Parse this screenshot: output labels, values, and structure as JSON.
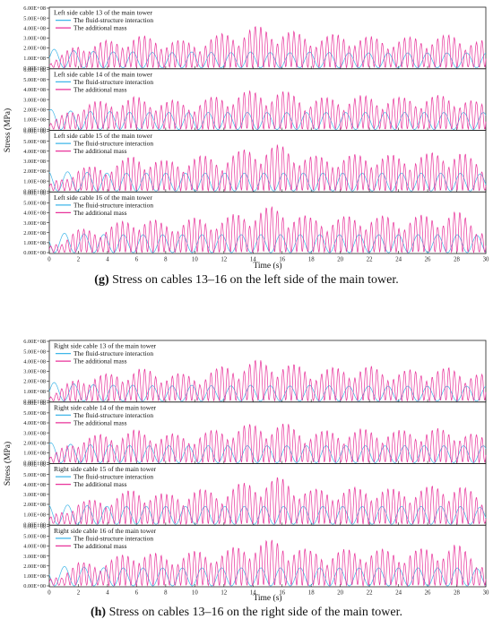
{
  "figure": {
    "caption_g_label": "(g)",
    "caption_g_text": "Stress on cables 13–16 on the left side of the main tower.",
    "caption_h_label": "(h)",
    "caption_h_text": "Stress on cables 13–16 on the right side of the main tower."
  },
  "colors": {
    "fsi": "#3fb6e8",
    "am": "#e8329a"
  },
  "chart_data": [
    {
      "type": "line",
      "group": "g",
      "ylabel": "Stress (MPa)",
      "xlabel": "Time (s)",
      "xlim": [
        0,
        30
      ],
      "x_ticks": [
        0,
        2,
        4,
        6,
        8,
        10,
        12,
        14,
        16,
        18,
        20,
        22,
        24,
        26,
        28,
        30
      ],
      "ylim": [
        0,
        600000000
      ],
      "y_tick_labels": [
        "0.00E+00",
        "1.00E+08",
        "2.00E+08",
        "3.00E+08",
        "4.00E+08",
        "5.00E+08",
        "6.00E+08"
      ],
      "legend_placement": "top-left",
      "series_names": [
        "The fluid-structure interaction",
        "The additional mass"
      ],
      "panels": [
        {
          "title": "Left side cable 13 of the main tower",
          "series": [
            {
              "name": "The fluid-structure interaction",
              "x": [
                0,
                2,
                4,
                6,
                8,
                10,
                12,
                14,
                16,
                18,
                20,
                22,
                24,
                26,
                28,
                30
              ],
              "values": [
                190000000.0,
                170000000.0,
                160000000.0,
                160000000.0,
                150000000.0,
                160000000.0,
                150000000.0,
                160000000.0,
                150000000.0,
                160000000.0,
                150000000.0,
                150000000.0,
                150000000.0,
                150000000.0,
                150000000.0,
                150000000.0
              ]
            },
            {
              "name": "The additional mass",
              "x": [
                0,
                2,
                4,
                6,
                8,
                10,
                12,
                14,
                16,
                18,
                20,
                22,
                24,
                26,
                28,
                30
              ],
              "values": [
                50000000.0,
                240000000.0,
                270000000.0,
                330000000.0,
                290000000.0,
                260000000.0,
                350000000.0,
                420000000.0,
                390000000.0,
                320000000.0,
                340000000.0,
                310000000.0,
                300000000.0,
                320000000.0,
                330000000.0,
                260000000.0
              ]
            }
          ]
        },
        {
          "title": "Left side cable 14 of the main tower",
          "series": [
            {
              "name": "The fluid-structure interaction",
              "x": [
                0,
                2,
                4,
                6,
                8,
                10,
                12,
                14,
                16,
                18,
                20,
                22,
                24,
                26,
                28,
                30
              ],
              "values": [
                200000000.0,
                180000000.0,
                180000000.0,
                170000000.0,
                170000000.0,
                170000000.0,
                170000000.0,
                170000000.0,
                170000000.0,
                170000000.0,
                170000000.0,
                170000000.0,
                170000000.0,
                170000000.0,
                170000000.0,
                170000000.0
              ]
            },
            {
              "name": "The additional mass",
              "x": [
                0,
                2,
                4,
                6,
                8,
                10,
                12,
                14,
                16,
                18,
                20,
                22,
                24,
                26,
                28,
                30
              ],
              "values": [
                50000000.0,
                260000000.0,
                290000000.0,
                330000000.0,
                290000000.0,
                280000000.0,
                350000000.0,
                390000000.0,
                390000000.0,
                310000000.0,
                330000000.0,
                340000000.0,
                320000000.0,
                340000000.0,
                340000000.0,
                250000000.0
              ]
            }
          ]
        },
        {
          "title": "Left side cable 15 of the main tower",
          "series": [
            {
              "name": "The fluid-structure interaction",
              "x": [
                0,
                2,
                4,
                6,
                8,
                10,
                12,
                14,
                16,
                18,
                20,
                22,
                24,
                26,
                28,
                30
              ],
              "values": [
                200000000.0,
                190000000.0,
                180000000.0,
                180000000.0,
                180000000.0,
                180000000.0,
                180000000.0,
                180000000.0,
                180000000.0,
                180000000.0,
                180000000.0,
                180000000.0,
                180000000.0,
                180000000.0,
                180000000.0,
                170000000.0
              ]
            },
            {
              "name": "The additional mass",
              "x": [
                0,
                2,
                4,
                6,
                8,
                10,
                12,
                14,
                16,
                18,
                20,
                22,
                24,
                26,
                28,
                30
              ],
              "values": [
                60000000.0,
                230000000.0,
                260000000.0,
                370000000.0,
                300000000.0,
                350000000.0,
                350000000.0,
                450000000.0,
                460000000.0,
                350000000.0,
                360000000.0,
                380000000.0,
                350000000.0,
                380000000.0,
                420000000.0,
                240000000.0
              ]
            }
          ]
        },
        {
          "title": "Left side cable 16 of the main tower",
          "series": [
            {
              "name": "The fluid-structure interaction",
              "x": [
                0,
                2,
                4,
                6,
                8,
                10,
                12,
                14,
                16,
                18,
                20,
                22,
                24,
                26,
                28,
                30
              ],
              "values": [
                200000000.0,
                190000000.0,
                180000000.0,
                180000000.0,
                180000000.0,
                180000000.0,
                180000000.0,
                180000000.0,
                180000000.0,
                180000000.0,
                180000000.0,
                180000000.0,
                180000000.0,
                180000000.0,
                180000000.0,
                170000000.0
              ]
            },
            {
              "name": "The additional mass",
              "x": [
                0,
                2,
                4,
                6,
                8,
                10,
                12,
                14,
                16,
                18,
                20,
                22,
                24,
                26,
                28,
                30
              ],
              "values": [
                60000000.0,
                230000000.0,
                260000000.0,
                370000000.0,
                300000000.0,
                350000000.0,
                350000000.0,
                450000000.0,
                460000000.0,
                350000000.0,
                360000000.0,
                380000000.0,
                350000000.0,
                380000000.0,
                420000000.0,
                240000000.0
              ]
            }
          ]
        }
      ]
    },
    {
      "type": "line",
      "group": "h",
      "ylabel": "Stress (MPa)",
      "xlabel": "Time (s)",
      "xlim": [
        0,
        30
      ],
      "x_ticks": [
        0,
        2,
        4,
        6,
        8,
        10,
        12,
        14,
        16,
        18,
        20,
        22,
        24,
        26,
        28,
        30
      ],
      "ylim": [
        0,
        600000000
      ],
      "y_tick_labels": [
        "0.00E+00",
        "1.00E+08",
        "2.00E+08",
        "3.00E+08",
        "4.00E+08",
        "5.00E+08",
        "6.00E+08"
      ],
      "legend_placement": "top-left",
      "series_names": [
        "The fluid-structure interaction",
        "The additional mass"
      ],
      "panels": [
        {
          "title": "Right side cable 13 of the main tower",
          "series": [
            {
              "name": "The fluid-structure interaction",
              "x": [
                0,
                2,
                4,
                6,
                8,
                10,
                12,
                14,
                16,
                18,
                20,
                22,
                24,
                26,
                28,
                30
              ],
              "values": [
                190000000.0,
                170000000.0,
                160000000.0,
                160000000.0,
                150000000.0,
                160000000.0,
                150000000.0,
                160000000.0,
                150000000.0,
                160000000.0,
                150000000.0,
                150000000.0,
                150000000.0,
                150000000.0,
                150000000.0,
                150000000.0
              ]
            },
            {
              "name": "The additional mass",
              "x": [
                0,
                2,
                4,
                6,
                8,
                10,
                12,
                14,
                16,
                18,
                20,
                22,
                24,
                26,
                28,
                30
              ],
              "values": [
                50000000.0,
                240000000.0,
                270000000.0,
                330000000.0,
                290000000.0,
                260000000.0,
                350000000.0,
                410000000.0,
                400000000.0,
                320000000.0,
                340000000.0,
                350000000.0,
                300000000.0,
                330000000.0,
                330000000.0,
                260000000.0
              ]
            }
          ]
        },
        {
          "title": "Right side cable 14 of the main tower",
          "series": [
            {
              "name": "The fluid-structure interaction",
              "x": [
                0,
                2,
                4,
                6,
                8,
                10,
                12,
                14,
                16,
                18,
                20,
                22,
                24,
                26,
                28,
                30
              ],
              "values": [
                200000000.0,
                180000000.0,
                180000000.0,
                170000000.0,
                170000000.0,
                170000000.0,
                170000000.0,
                170000000.0,
                170000000.0,
                170000000.0,
                170000000.0,
                170000000.0,
                170000000.0,
                170000000.0,
                170000000.0,
                170000000.0
              ]
            },
            {
              "name": "The additional mass",
              "x": [
                0,
                2,
                4,
                6,
                8,
                10,
                12,
                14,
                16,
                18,
                20,
                22,
                24,
                26,
                28,
                30
              ],
              "values": [
                50000000.0,
                260000000.0,
                290000000.0,
                330000000.0,
                290000000.0,
                280000000.0,
                350000000.0,
                390000000.0,
                400000000.0,
                310000000.0,
                330000000.0,
                340000000.0,
                320000000.0,
                340000000.0,
                340000000.0,
                250000000.0
              ]
            }
          ]
        },
        {
          "title": "Right side cable 15 of the main tower",
          "series": [
            {
              "name": "The fluid-structure interaction",
              "x": [
                0,
                2,
                4,
                6,
                8,
                10,
                12,
                14,
                16,
                18,
                20,
                22,
                24,
                26,
                28,
                30
              ],
              "values": [
                200000000.0,
                190000000.0,
                180000000.0,
                180000000.0,
                180000000.0,
                180000000.0,
                180000000.0,
                180000000.0,
                180000000.0,
                180000000.0,
                180000000.0,
                180000000.0,
                180000000.0,
                180000000.0,
                180000000.0,
                170000000.0
              ]
            },
            {
              "name": "The additional mass",
              "x": [
                0,
                2,
                4,
                6,
                8,
                10,
                12,
                14,
                16,
                18,
                20,
                22,
                24,
                26,
                28,
                30
              ],
              "values": [
                60000000.0,
                230000000.0,
                260000000.0,
                370000000.0,
                300000000.0,
                350000000.0,
                350000000.0,
                450000000.0,
                470000000.0,
                350000000.0,
                360000000.0,
                380000000.0,
                350000000.0,
                380000000.0,
                420000000.0,
                240000000.0
              ]
            }
          ]
        },
        {
          "title": "Right side cable 16 of the main tower",
          "series": [
            {
              "name": "The fluid-structure interaction",
              "x": [
                0,
                2,
                4,
                6,
                8,
                10,
                12,
                14,
                16,
                18,
                20,
                22,
                24,
                26,
                28,
                30
              ],
              "values": [
                200000000.0,
                190000000.0,
                180000000.0,
                180000000.0,
                180000000.0,
                180000000.0,
                180000000.0,
                180000000.0,
                180000000.0,
                180000000.0,
                180000000.0,
                180000000.0,
                180000000.0,
                180000000.0,
                180000000.0,
                170000000.0
              ]
            },
            {
              "name": "The additional mass",
              "x": [
                0,
                2,
                4,
                6,
                8,
                10,
                12,
                14,
                16,
                18,
                20,
                22,
                24,
                26,
                28,
                30
              ],
              "values": [
                60000000.0,
                230000000.0,
                260000000.0,
                370000000.0,
                300000000.0,
                350000000.0,
                350000000.0,
                460000000.0,
                460000000.0,
                350000000.0,
                360000000.0,
                380000000.0,
                350000000.0,
                380000000.0,
                420000000.0,
                240000000.0
              ]
            }
          ]
        }
      ]
    }
  ]
}
